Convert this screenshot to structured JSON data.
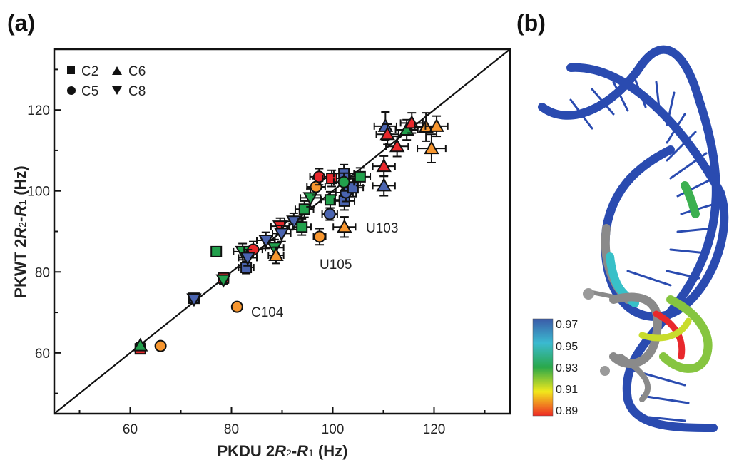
{
  "panels": {
    "a": "(a)",
    "b": "(b)"
  },
  "chart_data": {
    "type": "scatter",
    "xlabel": "PKDU 2R2-R1 (Hz)",
    "ylabel": "PKWT 2R2-R1 (Hz)",
    "xlabel_parts": {
      "pre": "PKDU 2",
      "r2": "R",
      "s2": "2",
      "dash": "-",
      "r1": "R",
      "s1": "1",
      "post": " (Hz)"
    },
    "ylabel_parts": {
      "pre": "PKWT 2",
      "r2": "R",
      "s2": "2",
      "dash": "-",
      "r1": "R",
      "s1": "1",
      "post": " (Hz)"
    },
    "xlim": [
      45,
      135
    ],
    "ylim": [
      45,
      135
    ],
    "xticks": [
      60,
      80,
      100,
      120
    ],
    "yticks": [
      60,
      80,
      100,
      120
    ],
    "minor_ticks": [
      50,
      70,
      90,
      110,
      130
    ],
    "reference_line": "y = x diagonal",
    "legend": {
      "placement": "top-left",
      "items": [
        {
          "label": "C2",
          "shape": "square"
        },
        {
          "label": "C6",
          "shape": "triangle-up"
        },
        {
          "label": "C5",
          "shape": "circle"
        },
        {
          "label": "C8",
          "shape": "triangle-down"
        }
      ]
    },
    "colors": {
      "blue": "#4a64b0",
      "red": "#e8282c",
      "green": "#22a04c",
      "orange": "#f7962f"
    },
    "annotations": [
      {
        "text": "U103",
        "x": 104.5,
        "y": 91
      },
      {
        "text": "U105",
        "x": 95.5,
        "y": 84
      },
      {
        "text": "C104",
        "x": 83.5,
        "y": 70.5
      }
    ],
    "points": [
      {
        "x": 62.0,
        "y": 61.0,
        "shape": "square",
        "color": "red",
        "xerr": 0.8,
        "yerr": 0.8
      },
      {
        "x": 62.0,
        "y": 61.8,
        "shape": "triangle-up",
        "color": "green",
        "xerr": 0.8,
        "yerr": 0.8
      },
      {
        "x": 66.0,
        "y": 61.7,
        "shape": "circle",
        "color": "orange",
        "xerr": 0.6,
        "yerr": 0.6
      },
      {
        "x": 72.6,
        "y": 73.5,
        "shape": "square",
        "color": "blue",
        "xerr": 1.0,
        "yerr": 1.0
      },
      {
        "x": 72.6,
        "y": 73.3,
        "shape": "triangle-down",
        "color": "blue",
        "xerr": 1.0,
        "yerr": 1.0
      },
      {
        "x": 81.1,
        "y": 71.4,
        "shape": "circle",
        "color": "orange",
        "xerr": 0.8,
        "yerr": 0.8
      },
      {
        "x": 78.4,
        "y": 78.5,
        "shape": "square",
        "color": "red",
        "xerr": 1.0,
        "yerr": 1.0
      },
      {
        "x": 78.4,
        "y": 78.0,
        "shape": "triangle-down",
        "color": "green",
        "xerr": 1.0,
        "yerr": 1.0
      },
      {
        "x": 77.0,
        "y": 85.0,
        "shape": "square",
        "color": "green",
        "xerr": 0.6,
        "yerr": 0.6
      },
      {
        "x": 82.9,
        "y": 81.1,
        "shape": "square",
        "color": "blue",
        "xerr": 1.5,
        "yerr": 1.5
      },
      {
        "x": 82.2,
        "y": 85.0,
        "shape": "triangle-down",
        "color": "green",
        "xerr": 1.8,
        "yerr": 2.0
      },
      {
        "x": 84.3,
        "y": 85.5,
        "shape": "circle",
        "color": "red",
        "xerr": 1.8,
        "yerr": 2.0
      },
      {
        "x": 83.2,
        "y": 83.5,
        "shape": "triangle-down",
        "color": "blue",
        "xerr": 1.8,
        "yerr": 2.0
      },
      {
        "x": 86.8,
        "y": 87.8,
        "shape": "triangle-down",
        "color": "blue",
        "xerr": 1.8,
        "yerr": 2.0
      },
      {
        "x": 88.5,
        "y": 86.0,
        "shape": "triangle-down",
        "color": "green",
        "xerr": 1.8,
        "yerr": 2.0
      },
      {
        "x": 88.8,
        "y": 84.1,
        "shape": "triangle-up",
        "color": "orange",
        "xerr": 1.5,
        "yerr": 2.0
      },
      {
        "x": 89.6,
        "y": 91.3,
        "shape": "triangle-down",
        "color": "red",
        "xerr": 1.8,
        "yerr": 2.0
      },
      {
        "x": 89.9,
        "y": 89.5,
        "shape": "triangle-down",
        "color": "blue",
        "xerr": 1.8,
        "yerr": 2.0
      },
      {
        "x": 92.3,
        "y": 92.5,
        "shape": "triangle-down",
        "color": "blue",
        "xerr": 1.8,
        "yerr": 2.0
      },
      {
        "x": 93.9,
        "y": 91.1,
        "shape": "square",
        "color": "green",
        "xerr": 1.8,
        "yerr": 2.0
      },
      {
        "x": 94.4,
        "y": 95.5,
        "shape": "square",
        "color": "green",
        "xerr": 1.8,
        "yerr": 2.0
      },
      {
        "x": 95.6,
        "y": 98.3,
        "shape": "triangle-down",
        "color": "green",
        "xerr": 2.0,
        "yerr": 2.2
      },
      {
        "x": 96.7,
        "y": 101.0,
        "shape": "circle",
        "color": "orange",
        "xerr": 1.8,
        "yerr": 2.0
      },
      {
        "x": 97.3,
        "y": 103.5,
        "shape": "circle",
        "color": "red",
        "xerr": 1.8,
        "yerr": 2.0
      },
      {
        "x": 99.8,
        "y": 103.1,
        "shape": "square",
        "color": "red",
        "xerr": 1.8,
        "yerr": 2.0
      },
      {
        "x": 99.5,
        "y": 97.8,
        "shape": "square",
        "color": "green",
        "xerr": 1.8,
        "yerr": 2.0
      },
      {
        "x": 99.4,
        "y": 94.3,
        "shape": "circle",
        "color": "blue",
        "xerr": 1.5,
        "yerr": 1.5
      },
      {
        "x": 97.4,
        "y": 88.7,
        "shape": "circle",
        "color": "orange",
        "xerr": 1.2,
        "yerr": 2.0
      },
      {
        "x": 102.3,
        "y": 91.1,
        "shape": "triangle-up",
        "color": "orange",
        "xerr": 2.2,
        "yerr": 2.5
      },
      {
        "x": 102.2,
        "y": 104.3,
        "shape": "square",
        "color": "blue",
        "xerr": 2.0,
        "yerr": 2.2
      },
      {
        "x": 102.3,
        "y": 97.5,
        "shape": "square",
        "color": "blue",
        "xerr": 2.0,
        "yerr": 2.2
      },
      {
        "x": 102.6,
        "y": 99.6,
        "shape": "circle",
        "color": "blue",
        "xerr": 2.0,
        "yerr": 2.2
      },
      {
        "x": 104.0,
        "y": 100.8,
        "shape": "square",
        "color": "blue",
        "xerr": 2.0,
        "yerr": 2.2
      },
      {
        "x": 102.2,
        "y": 102.2,
        "shape": "circle",
        "color": "green",
        "xerr": 2.0,
        "yerr": 2.2
      },
      {
        "x": 105.4,
        "y": 103.5,
        "shape": "square",
        "color": "green",
        "xerr": 2.0,
        "yerr": 2.2
      },
      {
        "x": 110.1,
        "y": 106.1,
        "shape": "triangle-up",
        "color": "red",
        "xerr": 2.2,
        "yerr": 2.5
      },
      {
        "x": 110.1,
        "y": 101.3,
        "shape": "triangle-up",
        "color": "blue",
        "xerr": 2.2,
        "yerr": 2.5
      },
      {
        "x": 110.4,
        "y": 116.0,
        "shape": "triangle-up",
        "color": "blue",
        "xerr": 2.2,
        "yerr": 3.5
      },
      {
        "x": 110.8,
        "y": 114.0,
        "shape": "triangle-up",
        "color": "red",
        "xerr": 2.2,
        "yerr": 2.5
      },
      {
        "x": 112.7,
        "y": 111.0,
        "shape": "triangle-up",
        "color": "red",
        "xerr": 2.2,
        "yerr": 2.5
      },
      {
        "x": 114.6,
        "y": 115.1,
        "shape": "triangle-up",
        "color": "green",
        "xerr": 2.2,
        "yerr": 2.5
      },
      {
        "x": 115.6,
        "y": 116.8,
        "shape": "triangle-up",
        "color": "red",
        "xerr": 2.2,
        "yerr": 2.5
      },
      {
        "x": 118.4,
        "y": 115.8,
        "shape": "triangle-up",
        "color": "orange",
        "xerr": 2.2,
        "yerr": 3.5
      },
      {
        "x": 120.5,
        "y": 116.0,
        "shape": "triangle-up",
        "color": "orange",
        "xerr": 2.2,
        "yerr": 2.5
      },
      {
        "x": 119.5,
        "y": 110.5,
        "shape": "triangle-up",
        "color": "orange",
        "xerr": 2.8,
        "yerr": 3.5
      }
    ]
  },
  "colorbar": {
    "ticks": [
      "0.97",
      "0.95",
      "0.93",
      "0.91",
      "0.89"
    ],
    "colors": [
      "#3b5ba8",
      "#3bbad0",
      "#2aa84a",
      "#f2e81c",
      "#ee2a24"
    ]
  },
  "structure": {
    "backbone_color": "#2a4bb0",
    "loop_colors": [
      "#8a8a8a",
      "#e8282c",
      "#c8dc2c",
      "#86c540",
      "#38c0c8",
      "#3cb050"
    ]
  }
}
